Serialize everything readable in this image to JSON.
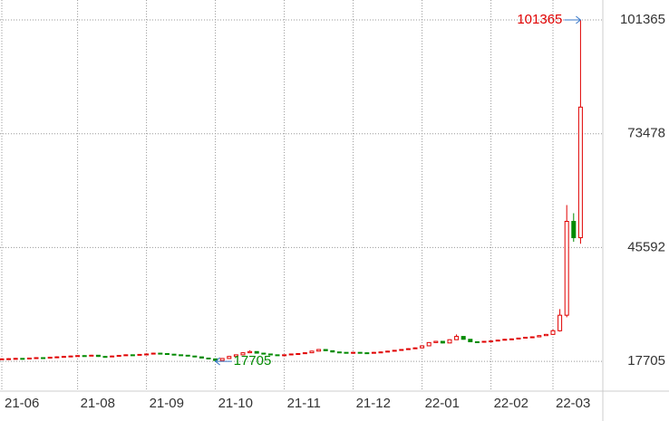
{
  "chart_data": {
    "type": "candlestick",
    "categories": [
      "21-06",
      null,
      null,
      null,
      null,
      null,
      null,
      null,
      null,
      null,
      null,
      "21-08",
      null,
      null,
      null,
      null,
      null,
      null,
      null,
      null,
      null,
      "21-09",
      null,
      null,
      null,
      null,
      null,
      null,
      null,
      null,
      null,
      "21-10",
      null,
      null,
      null,
      null,
      null,
      null,
      null,
      null,
      null,
      "21-11",
      null,
      null,
      null,
      null,
      null,
      null,
      null,
      null,
      null,
      "21-12",
      null,
      null,
      null,
      null,
      null,
      null,
      null,
      null,
      null,
      "22-01",
      null,
      null,
      null,
      null,
      null,
      null,
      null,
      null,
      null,
      "22-02",
      null,
      null,
      null,
      null,
      null,
      null,
      null,
      null,
      "22-03",
      null,
      null,
      null,
      null
    ],
    "series": [
      {
        "values": [
          [
            18250,
            18450,
            18150,
            18300
          ],
          [
            18300,
            18450,
            18200,
            18350
          ],
          [
            18350,
            18550,
            18250,
            18420
          ],
          [
            18420,
            18500,
            18280,
            18380
          ],
          [
            18380,
            18600,
            18300,
            18500
          ],
          [
            18500,
            18700,
            18400,
            18600
          ],
          [
            18600,
            18700,
            18450,
            18550
          ],
          [
            18550,
            18800,
            18500,
            18700
          ],
          [
            18700,
            18900,
            18600,
            18800
          ],
          [
            18800,
            19000,
            18700,
            18900
          ],
          [
            18900,
            19100,
            18800,
            19000
          ],
          [
            19000,
            19200,
            18900,
            19100
          ],
          [
            19100,
            19200,
            18950,
            19050
          ],
          [
            19050,
            19300,
            19000,
            19200
          ],
          [
            19200,
            19250,
            18800,
            18900
          ],
          [
            18900,
            19000,
            18700,
            18800
          ],
          [
            18800,
            19100,
            18750,
            19000
          ],
          [
            19000,
            19250,
            18950,
            19150
          ],
          [
            19150,
            19400,
            19100,
            19300
          ],
          [
            19300,
            19400,
            19150,
            19250
          ],
          [
            19250,
            19500,
            19200,
            19400
          ],
          [
            19400,
            19600,
            19350,
            19500
          ],
          [
            19500,
            19800,
            19450,
            19700
          ],
          [
            19700,
            19750,
            19500,
            19600
          ],
          [
            19600,
            19650,
            19350,
            19450
          ],
          [
            19450,
            19500,
            19200,
            19300
          ],
          [
            19300,
            19350,
            19100,
            19200
          ],
          [
            19200,
            19250,
            18900,
            19000
          ],
          [
            19000,
            19050,
            18700,
            18800
          ],
          [
            18800,
            18850,
            18400,
            18500
          ],
          [
            18500,
            18550,
            18200,
            18300
          ],
          [
            18300,
            18400,
            17705,
            17900
          ],
          [
            17900,
            18500,
            17850,
            18400
          ],
          [
            18400,
            19000,
            18350,
            18900
          ],
          [
            18900,
            19400,
            18850,
            19300
          ],
          [
            19300,
            19900,
            19250,
            19800
          ],
          [
            19800,
            20400,
            19750,
            20100
          ],
          [
            20100,
            20150,
            19600,
            19700
          ],
          [
            19700,
            19750,
            19400,
            19500
          ],
          [
            19500,
            19550,
            19200,
            19300
          ],
          [
            19300,
            19350,
            19100,
            19200
          ],
          [
            19200,
            19400,
            19150,
            19300
          ],
          [
            19300,
            19600,
            19250,
            19500
          ],
          [
            19500,
            19700,
            19450,
            19600
          ],
          [
            19600,
            19900,
            19550,
            19800
          ],
          [
            19800,
            20300,
            19750,
            20200
          ],
          [
            20200,
            20700,
            20150,
            20600
          ],
          [
            20600,
            20650,
            20200,
            20300
          ],
          [
            20300,
            20350,
            19900,
            20000
          ],
          [
            20000,
            20050,
            19800,
            19900
          ],
          [
            19900,
            19950,
            19700,
            19800
          ],
          [
            19800,
            20000,
            19750,
            19900
          ],
          [
            19900,
            19950,
            19700,
            19800
          ],
          [
            19800,
            19850,
            19600,
            19700
          ],
          [
            19700,
            20000,
            19650,
            19900
          ],
          [
            19900,
            20100,
            19850,
            20000
          ],
          [
            20000,
            20300,
            19950,
            20200
          ],
          [
            20200,
            20500,
            20150,
            20400
          ],
          [
            20400,
            20700,
            20350,
            20600
          ],
          [
            20600,
            20900,
            20550,
            20800
          ],
          [
            20800,
            21100,
            20750,
            21000
          ],
          [
            21000,
            21600,
            20950,
            21500
          ],
          [
            21500,
            22400,
            21450,
            22300
          ],
          [
            22300,
            22700,
            22250,
            22600
          ],
          [
            22600,
            22650,
            22100,
            22200
          ],
          [
            22200,
            23100,
            22150,
            23000
          ],
          [
            23000,
            24300,
            22950,
            23800
          ],
          [
            23800,
            23850,
            23000,
            23100
          ],
          [
            23100,
            23150,
            22400,
            22500
          ],
          [
            22500,
            22550,
            22300,
            22400
          ],
          [
            22400,
            22700,
            22350,
            22600
          ],
          [
            22600,
            22800,
            22550,
            22700
          ],
          [
            22700,
            23000,
            22650,
            22900
          ],
          [
            22900,
            23200,
            22850,
            23100
          ],
          [
            23100,
            23300,
            23000,
            23200
          ],
          [
            23200,
            23500,
            23150,
            23400
          ],
          [
            23400,
            23700,
            23350,
            23600
          ],
          [
            23600,
            23800,
            23500,
            23700
          ],
          [
            23700,
            24100,
            23650,
            24000
          ],
          [
            24000,
            24400,
            23950,
            24300
          ],
          [
            24300,
            25500,
            24200,
            25200
          ],
          [
            25200,
            30500,
            25000,
            29000
          ],
          [
            29000,
            56000,
            28500,
            52000
          ],
          [
            52000,
            54000,
            47000,
            48000
          ],
          [
            48000,
            101365,
            46500,
            80000
          ]
        ]
      }
    ],
    "up_color": "#e00000",
    "down_color": "#008a00",
    "ylim": [
      10400,
      106250
    ],
    "yticks": [
      17705,
      45592,
      73478,
      101365
    ],
    "grid": true,
    "max_label": 101365,
    "min_label": 17705
  }
}
